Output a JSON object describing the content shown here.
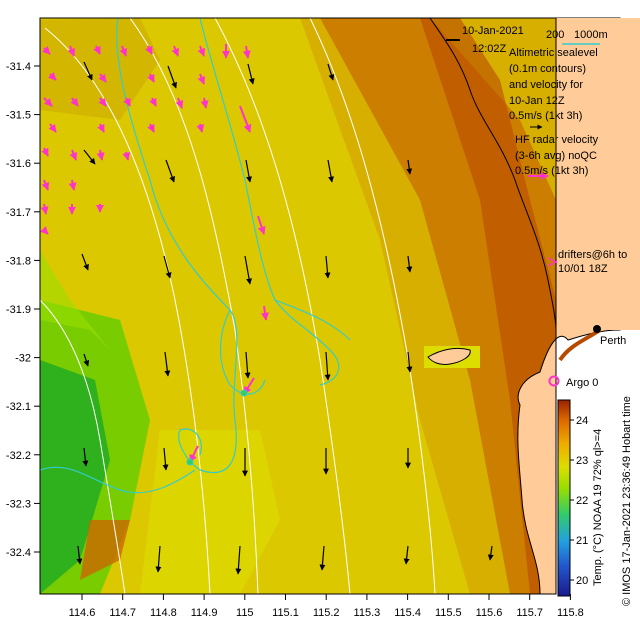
{
  "map": {
    "date": "10-Jan-2021",
    "time": "12:02Z",
    "bathymetry": {
      "contour_1": "200",
      "contour_2": "1000m"
    },
    "legend": {
      "altimetry": [
        "Altimetric sealevel",
        "(0.1m contours)",
        "and velocity for",
        "10-Jan 12Z",
        "0.5m/s (1kt 3h)"
      ],
      "hf_radar": [
        "HF radar velocity",
        "(3-6h avg) noQC",
        "0.5m/s (1kt 3h)"
      ],
      "drifters": [
        "drifters@6h to",
        "10/01 18Z"
      ],
      "argo": "Argo 0",
      "city": "Perth"
    },
    "x_ticks": [
      "114.6",
      "114.7",
      "114.8",
      "114.9",
      "115",
      "115.1",
      "115.2",
      "115.3",
      "115.4",
      "115.5",
      "115.6",
      "115.7",
      "115.8"
    ],
    "y_ticks": [
      "-31.4",
      "-31.5",
      "-31.6",
      "-31.7",
      "-31.8",
      "-31.9",
      "-32",
      "-32.1",
      "-32.2",
      "-32.3",
      "-32.4"
    ],
    "colorbar": {
      "ticks": [
        "24",
        "23",
        "22",
        "21",
        "20"
      ],
      "label": "Temp. (°C) NOAA 19 72% ql>=4",
      "range": [
        19.6,
        24.5
      ]
    },
    "credit": "© IMOS 17-Jan-2021 23:36:49 Hobart time",
    "colors": {
      "land": "#ffcc99",
      "altimetry_contour": "#33cccc",
      "hf_radar": "#ff33cc",
      "argo": "#ff33cc"
    }
  }
}
